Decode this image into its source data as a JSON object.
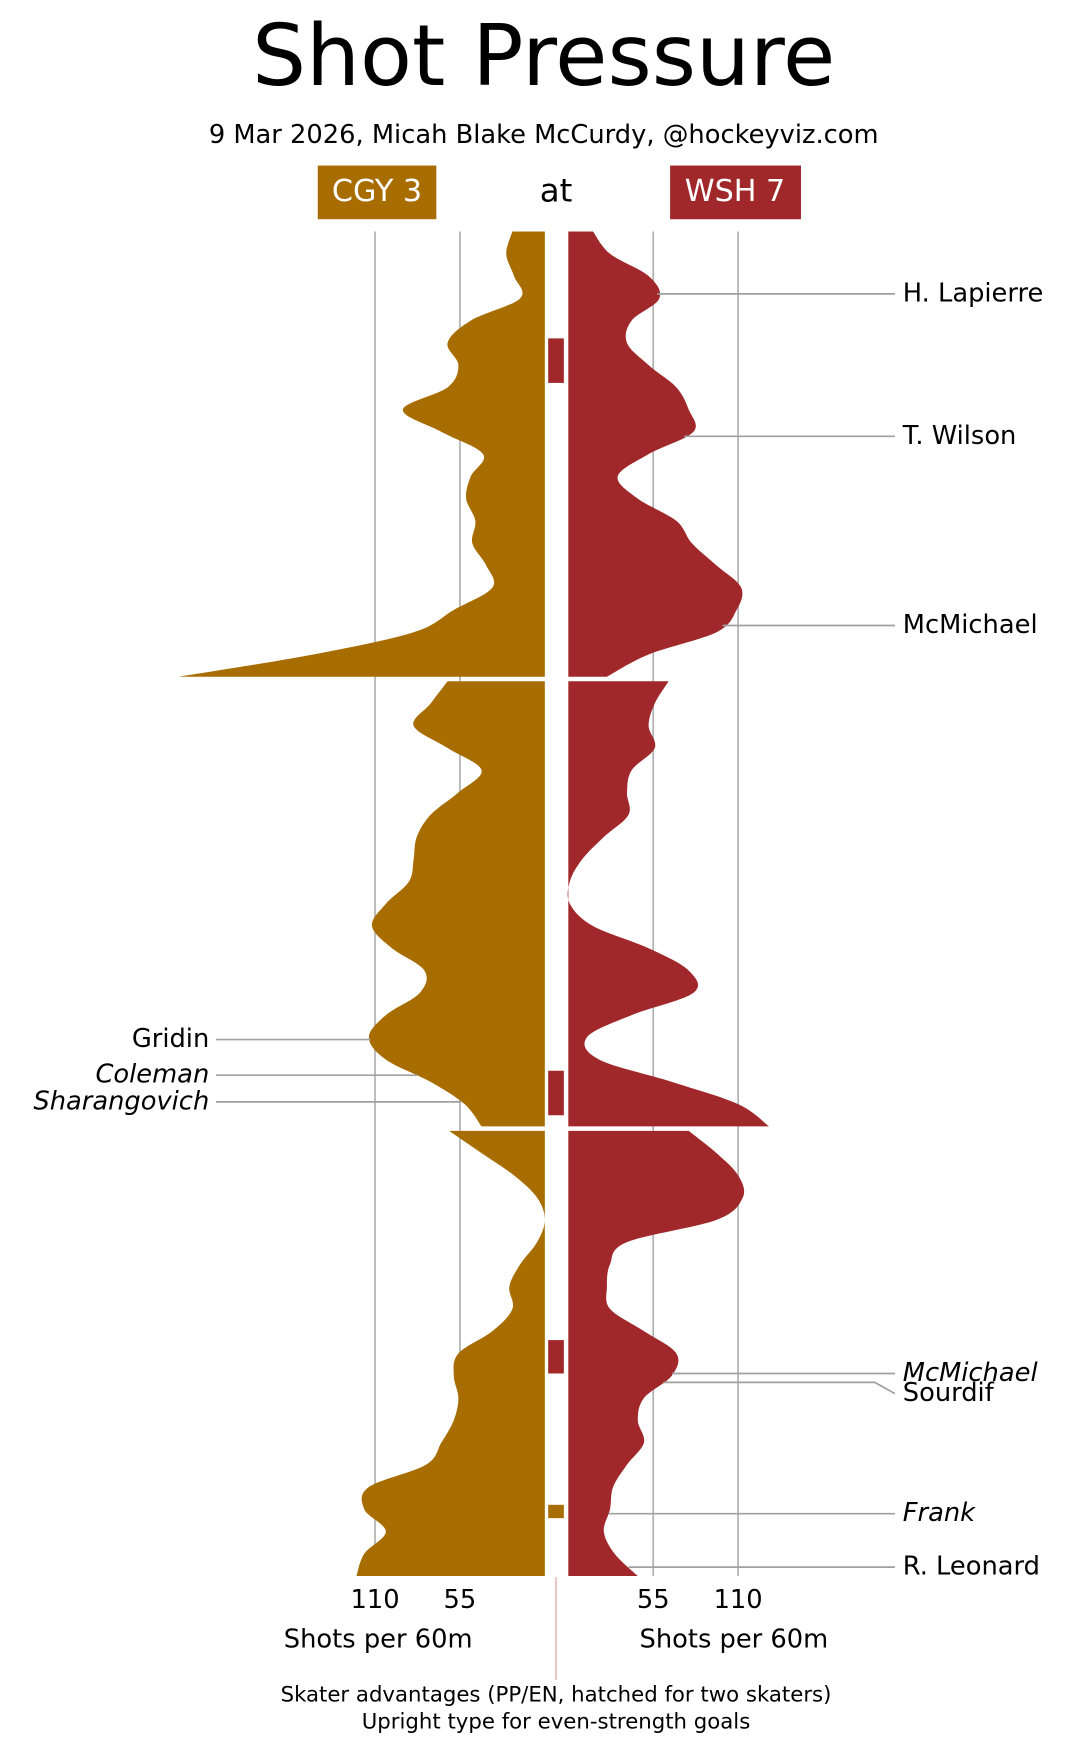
{
  "title": "Shot Pressure",
  "subtitle": "9 Mar 2026, Micah Blake McCurdy, @hockeyviz.com",
  "connector": "at",
  "footnotes": [
    "Skater advantages (PP/EN, hatched for two skaters)",
    "Upright type for even-strength goals"
  ],
  "chart_data": {
    "type": "area",
    "x": [
      0,
      1,
      2,
      3,
      4,
      5,
      6,
      7,
      8,
      9,
      10,
      11,
      12,
      13,
      14,
      15,
      16,
      17,
      18,
      19,
      20
    ],
    "xlabel": "Shots per 60m",
    "xlim": [
      0,
      250
    ],
    "xticks": [
      55,
      110
    ],
    "ylim": [
      0,
      60
    ],
    "grid": true,
    "series": [
      {
        "name": "CGY 3",
        "color": "#a86d00",
        "values": [
          [
            21,
            25,
            20,
            16,
            48,
            63,
            56,
            63,
            92,
            67,
            40,
            48,
            51,
            45,
            47,
            38,
            34,
            59,
            85,
            150,
            237
          ],
          [
            63,
            74,
            85,
            63,
            41,
            56,
            74,
            83,
            85,
            88,
            103,
            112,
            99,
            78,
            81,
            103,
            114,
            103,
            74,
            52,
            41
          ],
          [
            62,
            41,
            20,
            5,
            0,
            5,
            16,
            23,
            21,
            34,
            56,
            59,
            56,
            59,
            67,
            77,
            114,
            117,
            103,
            117,
            122
          ]
        ]
      },
      {
        "name": "WSH 7",
        "color": "#a0282a",
        "values": [
          [
            16,
            27,
            52,
            59,
            41,
            38,
            52,
            70,
            78,
            81,
            52,
            32,
            45,
            70,
            80,
            96,
            112,
            109,
            96,
            52,
            25
          ],
          [
            65,
            56,
            52,
            56,
            41,
            38,
            39,
            23,
            9,
            1,
            1,
            16,
            52,
            78,
            81,
            41,
            12,
            20,
            67,
            110,
            130
          ],
          [
            78,
            96,
            110,
            113,
            96,
            38,
            27,
            25,
            27,
            49,
            70,
            67,
            49,
            45,
            49,
            38,
            29,
            27,
            23,
            30,
            45
          ]
        ]
      }
    ],
    "goals": [
      {
        "team": 1,
        "scorer": "H. Lapierre",
        "minute": 2.8,
        "even_strength": true
      },
      {
        "team": 1,
        "scorer": "T. Wilson",
        "minute": 9.2,
        "even_strength": true
      },
      {
        "team": 1,
        "scorer": "McMichael",
        "minute": 17.7,
        "even_strength": true
      },
      {
        "team": 0,
        "scorer": "Gridin",
        "minute": 36.1,
        "even_strength": true
      },
      {
        "team": 0,
        "scorer": "Coleman",
        "minute": 37.7,
        "even_strength": false
      },
      {
        "team": 0,
        "scorer": "Sharangovich",
        "minute": 38.9,
        "even_strength": false
      },
      {
        "team": 1,
        "scorer": "McMichael",
        "minute": 50.9,
        "even_strength": false
      },
      {
        "team": 1,
        "scorer": "Sourdif",
        "minute": 51.3,
        "even_strength": true
      },
      {
        "team": 1,
        "scorer": "Frank",
        "minute": 57.2,
        "even_strength": false
      },
      {
        "team": 1,
        "scorer": "R. Leonard",
        "minute": 59.6,
        "even_strength": true
      }
    ],
    "advantages": [
      {
        "team": 1,
        "start": 4.8,
        "end": 6.8
      },
      {
        "team": 1,
        "start": 37.5,
        "end": 39.5
      },
      {
        "team": 1,
        "start": 49.4,
        "end": 50.9
      },
      {
        "team": 0,
        "start": 56.8,
        "end": 57.4
      }
    ]
  }
}
